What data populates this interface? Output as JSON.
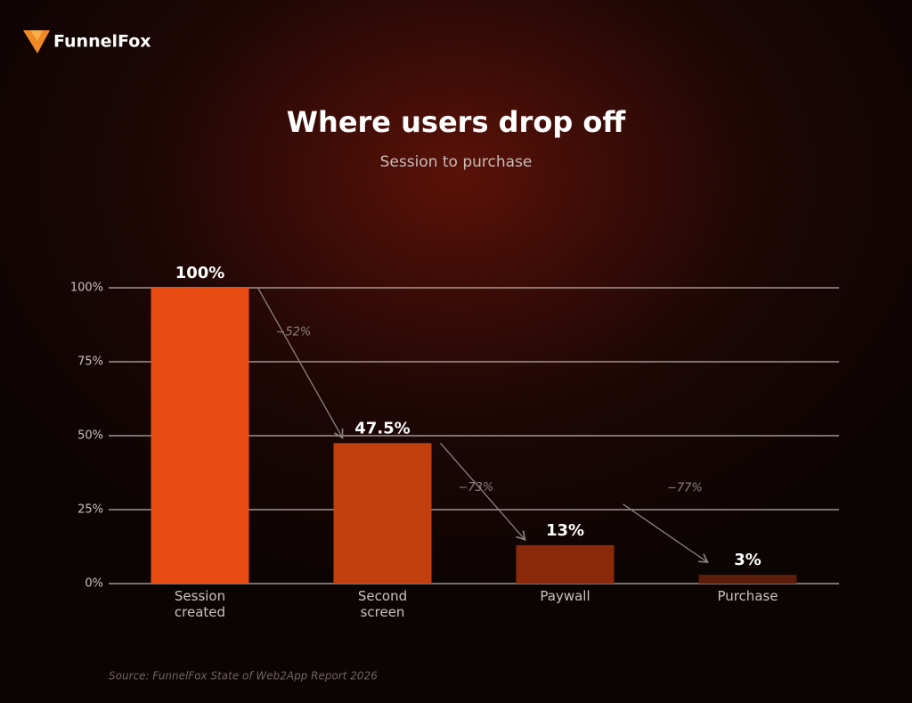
{
  "brand": "FunnelFox",
  "chart_data": {
    "type": "bar",
    "title": "Where users drop off",
    "subtitle": "Session to purchase",
    "categories": [
      "Session created",
      "Second screen",
      "Paywall",
      "Purchase"
    ],
    "values": [
      100,
      47.5,
      13,
      3
    ],
    "value_labels": [
      "100%",
      "47.5%",
      "13%",
      "3%"
    ],
    "colors": [
      "#e84c12",
      "#c2400d",
      "#8a2a0a",
      "#5c1d0b"
    ],
    "ylim": [
      0,
      100
    ],
    "yticks": [
      {
        "value": 0,
        "label": "0%"
      },
      {
        "value": 25,
        "label": "25%"
      },
      {
        "value": 50,
        "label": "50%"
      },
      {
        "value": 75,
        "label": "75%"
      },
      {
        "value": 100,
        "label": "100%"
      }
    ],
    "grid": true,
    "drop_labels": [
      "−52%",
      "−73%",
      "−77%"
    ],
    "source": "Source: FunnelFox State of Web2App Report 2026"
  }
}
